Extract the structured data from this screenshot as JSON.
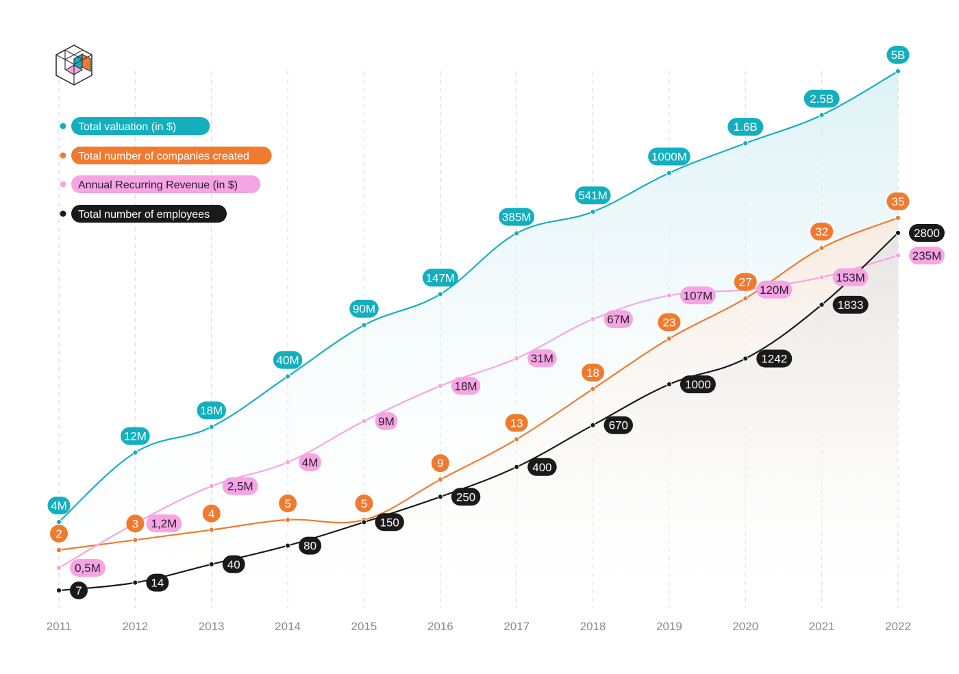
{
  "logo": {
    "name": "cube-logo"
  },
  "colors": {
    "valuation": "#14AFBF",
    "companies": "#F07A2E",
    "arr": "#F5A5E4",
    "arr_text": "#2a1a28",
    "employees": "#1A1A1A",
    "grid": "#d9d9d9",
    "axis_text": "#8a8a8a"
  },
  "chart_data": {
    "type": "line",
    "x": [
      "2011",
      "2012",
      "2013",
      "2014",
      "2015",
      "2016",
      "2017",
      "2018",
      "2019",
      "2020",
      "2021",
      "2022"
    ],
    "legend_position": "top-left",
    "grid": "vertical-dashed",
    "series": [
      {
        "key": "valuation",
        "name": "Total valuation (in $)",
        "labels": [
          "4M",
          "12M",
          "18M",
          "40M",
          "90M",
          "147M",
          "385M",
          "541M",
          "1000M",
          "1.6B",
          "2.5B",
          "5B"
        ],
        "values": [
          4,
          12,
          18,
          40,
          90,
          147,
          385,
          541,
          1000,
          1600,
          2500,
          5000
        ],
        "unit": "M$"
      },
      {
        "key": "companies",
        "name": "Total number of companies created",
        "labels": [
          "2",
          "3",
          "4",
          "5",
          "5",
          "9",
          "13",
          "18",
          "23",
          "27",
          "32",
          "35"
        ],
        "values": [
          2,
          3,
          4,
          5,
          5,
          9,
          13,
          18,
          23,
          27,
          32,
          35
        ],
        "unit": "count"
      },
      {
        "key": "arr",
        "name": "Annual Recurring Revenue (in $)",
        "labels": [
          "0,5M",
          "1,2M",
          "2,5M",
          "4M",
          "9M",
          "18M",
          "31M",
          "67M",
          "107M",
          "120M",
          "153M",
          "235M"
        ],
        "values": [
          0.5,
          1.2,
          2.5,
          4,
          9,
          18,
          31,
          67,
          107,
          120,
          153,
          235
        ],
        "unit": "M$"
      },
      {
        "key": "employees",
        "name": "Total number of employees",
        "labels": [
          "7",
          "14",
          "40",
          "80",
          "150",
          "250",
          "400",
          "670",
          "1000",
          "1242",
          "1833",
          "2800"
        ],
        "values": [
          7,
          14,
          40,
          80,
          150,
          250,
          400,
          670,
          1000,
          1242,
          1833,
          2800
        ],
        "unit": "count"
      }
    ]
  }
}
